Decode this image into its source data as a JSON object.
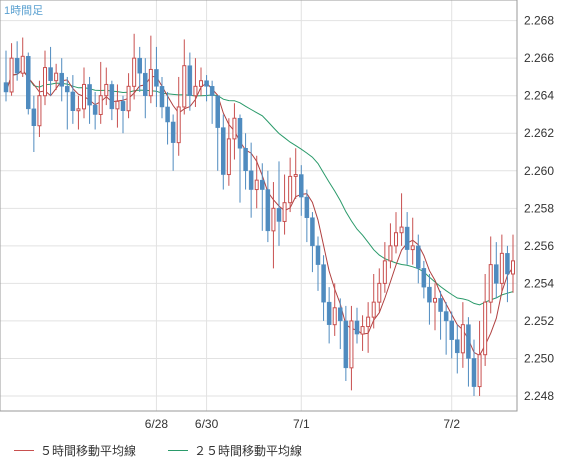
{
  "chart_data": {
    "type": "candlestick",
    "title": "1時間足",
    "y_ticks": [
      2.248,
      2.25,
      2.252,
      2.254,
      2.256,
      2.258,
      2.26,
      2.262,
      2.264,
      2.266,
      2.268
    ],
    "ylim": [
      2.2472,
      2.2691
    ],
    "x_tick_labels": [
      {
        "label": "6/28",
        "index": 27
      },
      {
        "label": "6/30",
        "index": 36
      },
      {
        "label": "7/1",
        "index": 53
      },
      {
        "label": "7/2",
        "index": 80
      }
    ],
    "grid": true,
    "colors": {
      "up": "#c8504f",
      "down": "#4f8bbf",
      "ma5": "#b04040",
      "ma25": "#2a9a6a",
      "grid": "#e2e2e2",
      "frame": "#9a9a9a",
      "axis_text": "#333333",
      "title": "#5aa0d0"
    },
    "candles": [
      [
        2.2647,
        2.2642,
        2.2664,
        2.2637
      ],
      [
        2.2642,
        2.266,
        2.2668,
        2.264
      ],
      [
        2.266,
        2.2652,
        2.2669,
        2.2648
      ],
      [
        2.2652,
        2.2661,
        2.2671,
        2.265
      ],
      [
        2.2661,
        2.2633,
        2.2663,
        2.263
      ],
      [
        2.2633,
        2.2624,
        2.264,
        2.261
      ],
      [
        2.2624,
        2.264,
        2.2648,
        2.2618
      ],
      [
        2.264,
        2.2655,
        2.2664,
        2.2635
      ],
      [
        2.2655,
        2.2648,
        2.2666,
        2.264
      ],
      [
        2.2648,
        2.2652,
        2.2657,
        2.2643
      ],
      [
        2.2652,
        2.2645,
        2.266,
        2.2637
      ],
      [
        2.2645,
        2.2642,
        2.265,
        2.2622
      ],
      [
        2.2642,
        2.2632,
        2.2651,
        2.2625
      ],
      [
        2.2632,
        2.2633,
        2.264,
        2.2622
      ],
      [
        2.2633,
        2.2646,
        2.2655,
        2.2628
      ],
      [
        2.2646,
        2.2635,
        2.265,
        2.2625
      ],
      [
        2.2635,
        2.263,
        2.2642,
        2.2622
      ],
      [
        2.263,
        2.264,
        2.2658,
        2.2625
      ],
      [
        2.264,
        2.2646,
        2.2655,
        2.2635
      ],
      [
        2.2646,
        2.2633,
        2.2648,
        2.2627
      ],
      [
        2.2633,
        2.2637,
        2.2646,
        2.2623
      ],
      [
        2.2637,
        2.2632,
        2.264,
        2.262
      ],
      [
        2.2632,
        2.2645,
        2.2652,
        2.2628
      ],
      [
        2.2645,
        2.266,
        2.2673,
        2.2638
      ],
      [
        2.266,
        2.2652,
        2.2666,
        2.2642
      ],
      [
        2.2652,
        2.264,
        2.266,
        2.2628
      ],
      [
        2.264,
        2.2654,
        2.2672,
        2.2636
      ],
      [
        2.2654,
        2.2645,
        2.2666,
        2.2634
      ],
      [
        2.2645,
        2.2634,
        2.265,
        2.2628
      ],
      [
        2.2634,
        2.2626,
        2.2642,
        2.2614
      ],
      [
        2.2626,
        2.2615,
        2.263,
        2.26
      ],
      [
        2.2615,
        2.2634,
        2.265,
        2.2608
      ],
      [
        2.2634,
        2.2656,
        2.267,
        2.263
      ],
      [
        2.2656,
        2.264,
        2.2663,
        2.2632
      ],
      [
        2.264,
        2.2645,
        2.266,
        2.2634
      ],
      [
        2.2645,
        2.2648,
        2.2655,
        2.264
      ],
      [
        2.2648,
        2.2645,
        2.2651,
        2.2637
      ],
      [
        2.2645,
        2.264,
        2.2648,
        2.2625
      ],
      [
        2.264,
        2.2623,
        2.264,
        2.26
      ],
      [
        2.2623,
        2.2598,
        2.263,
        2.259
      ],
      [
        2.2598,
        2.2617,
        2.2628,
        2.2592
      ],
      [
        2.2617,
        2.2628,
        2.2636,
        2.2606
      ],
      [
        2.2628,
        2.2612,
        2.263,
        2.2583
      ],
      [
        2.2612,
        2.26,
        2.262,
        2.259
      ],
      [
        2.26,
        2.259,
        2.2615,
        2.2575
      ],
      [
        2.259,
        2.2595,
        2.2608,
        2.258
      ],
      [
        2.2595,
        2.259,
        2.2604,
        2.2568
      ],
      [
        2.259,
        2.2568,
        2.26,
        2.2562
      ],
      [
        2.2568,
        2.258,
        2.2594,
        2.2548
      ],
      [
        2.258,
        2.2573,
        2.2605,
        2.256
      ],
      [
        2.2573,
        2.2583,
        2.2598,
        2.2566
      ],
      [
        2.2583,
        2.2597,
        2.2607,
        2.2578
      ],
      [
        2.2597,
        2.2598,
        2.2612,
        2.2585
      ],
      [
        2.2598,
        2.2586,
        2.2603,
        2.2576
      ],
      [
        2.2586,
        2.2575,
        2.259,
        2.2562
      ],
      [
        2.2575,
        2.256,
        2.2578,
        2.2546
      ],
      [
        2.256,
        2.255,
        2.2565,
        2.2536
      ],
      [
        2.255,
        2.253,
        2.2555,
        2.252
      ],
      [
        2.253,
        2.2518,
        2.2538,
        2.2508
      ],
      [
        2.2518,
        2.2527,
        2.254,
        2.2512
      ],
      [
        2.2527,
        2.252,
        2.2532,
        2.2505
      ],
      [
        2.252,
        2.2495,
        2.2528,
        2.2488
      ],
      [
        2.2495,
        2.252,
        2.2528,
        2.2483
      ],
      [
        2.252,
        2.2513,
        2.2527,
        2.2508
      ],
      [
        2.2513,
        2.2517,
        2.2523,
        2.2504
      ],
      [
        2.2517,
        2.2522,
        2.253,
        2.2503
      ],
      [
        2.2522,
        2.253,
        2.2545,
        2.2516
      ],
      [
        2.253,
        2.254,
        2.2548,
        2.2525
      ],
      [
        2.254,
        2.2552,
        2.2562,
        2.2535
      ],
      [
        2.2552,
        2.256,
        2.2572,
        2.2548
      ],
      [
        2.256,
        2.2567,
        2.2578,
        2.2556
      ],
      [
        2.2567,
        2.257,
        2.2588,
        2.256
      ],
      [
        2.257,
        2.2558,
        2.2578,
        2.255
      ],
      [
        2.2558,
        2.256,
        2.2575,
        2.255
      ],
      [
        2.256,
        2.2548,
        2.2566,
        2.254
      ],
      [
        2.2548,
        2.2538,
        2.2552,
        2.2532
      ],
      [
        2.2538,
        2.253,
        2.2545,
        2.2518
      ],
      [
        2.253,
        2.2532,
        2.254,
        2.2515
      ],
      [
        2.2532,
        2.2525,
        2.2536,
        2.251
      ],
      [
        2.2525,
        2.252,
        2.253,
        2.2502
      ],
      [
        2.252,
        2.251,
        2.2525,
        2.25
      ],
      [
        2.251,
        2.2503,
        2.2518,
        2.2492
      ],
      [
        2.2503,
        2.2518,
        2.253,
        2.2495
      ],
      [
        2.2518,
        2.25,
        2.2522,
        2.2485
      ],
      [
        2.25,
        2.2485,
        2.251,
        2.248
      ],
      [
        2.2485,
        2.2502,
        2.252,
        2.248
      ],
      [
        2.2502,
        2.253,
        2.2545,
        2.2496
      ],
      [
        2.253,
        2.255,
        2.2565,
        2.2524
      ],
      [
        2.255,
        2.254,
        2.2562,
        2.2532
      ],
      [
        2.254,
        2.2556,
        2.2566,
        2.2535
      ],
      [
        2.2556,
        2.2545,
        2.256,
        2.253
      ],
      [
        2.2545,
        2.2552,
        2.2566,
        2.2535
      ]
    ],
    "legend": [
      {
        "label": "５時間移動平均線",
        "color": "#c8504f"
      },
      {
        "label": "２５時間移動平均線",
        "color": "#2a9a6a"
      }
    ]
  }
}
